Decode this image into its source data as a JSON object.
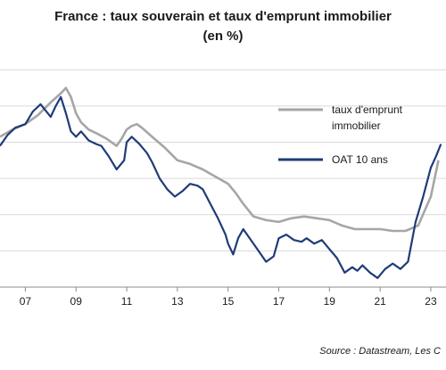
{
  "title_line1": "France : taux souverain et taux d'emprunt immobilier",
  "title_line2": "(en %)",
  "source": "Source : Datastream, Les C",
  "colors": {
    "mortgage": "#a6a6a6",
    "oat": "#1f3c78",
    "grid": "#d9d9d9"
  },
  "chart_data": {
    "type": "line",
    "title": "France : taux souverain et taux d'emprunt immobilier (en %)",
    "xlabel": "",
    "ylabel": "",
    "xlim": [
      2006.0,
      2023.6
    ],
    "ylim": [
      -0.5,
      6.0
    ],
    "x_ticks": [
      {
        "x": 2007.0,
        "label": "07"
      },
      {
        "x": 2009.0,
        "label": "09"
      },
      {
        "x": 2011.0,
        "label": "11"
      },
      {
        "x": 2013.0,
        "label": "13"
      },
      {
        "x": 2015.0,
        "label": "15"
      },
      {
        "x": 2017.0,
        "label": "17"
      },
      {
        "x": 2019.0,
        "label": "19"
      },
      {
        "x": 2021.0,
        "label": "21"
      },
      {
        "x": 2023.0,
        "label": "23"
      }
    ],
    "y_gridlines": [
      0.5,
      1.5,
      2.5,
      3.5,
      4.5,
      5.5
    ],
    "grid": true,
    "legend_position": "right",
    "series": [
      {
        "name": "taux d'emprunt immobilier",
        "color": "#a6a6a6",
        "x": [
          2006.0,
          2006.5,
          2007.0,
          2007.5,
          2008.0,
          2008.4,
          2008.6,
          2008.8,
          2009.0,
          2009.2,
          2009.5,
          2009.8,
          2010.2,
          2010.6,
          2010.8,
          2011.0,
          2011.2,
          2011.4,
          2011.6,
          2012.0,
          2012.5,
          2013.0,
          2013.5,
          2014.0,
          2014.5,
          2015.0,
          2015.3,
          2015.6,
          2016.0,
          2016.5,
          2017.0,
          2017.5,
          2018.0,
          2018.5,
          2019.0,
          2019.5,
          2020.0,
          2020.5,
          2021.0,
          2021.5,
          2022.0,
          2022.5,
          2023.0,
          2023.3
        ],
        "values": [
          3.65,
          3.85,
          4.0,
          4.25,
          4.6,
          4.85,
          5.0,
          4.75,
          4.3,
          4.05,
          3.85,
          3.75,
          3.6,
          3.4,
          3.6,
          3.85,
          3.95,
          4.0,
          3.9,
          3.65,
          3.35,
          3.0,
          2.9,
          2.75,
          2.55,
          2.35,
          2.1,
          1.8,
          1.45,
          1.35,
          1.3,
          1.4,
          1.45,
          1.4,
          1.35,
          1.2,
          1.1,
          1.1,
          1.1,
          1.05,
          1.05,
          1.2,
          2.0,
          3.0
        ]
      },
      {
        "name": "OAT 10 ans",
        "color": "#1f3c78",
        "x": [
          2006.0,
          2006.3,
          2006.6,
          2007.0,
          2007.3,
          2007.6,
          2008.0,
          2008.2,
          2008.4,
          2008.6,
          2008.8,
          2009.0,
          2009.2,
          2009.5,
          2009.8,
          2010.0,
          2010.3,
          2010.6,
          2010.9,
          2011.0,
          2011.2,
          2011.5,
          2011.8,
          2012.0,
          2012.3,
          2012.6,
          2012.9,
          2013.2,
          2013.5,
          2013.8,
          2014.0,
          2014.3,
          2014.6,
          2014.9,
          2015.0,
          2015.2,
          2015.4,
          2015.6,
          2015.9,
          2016.2,
          2016.5,
          2016.8,
          2017.0,
          2017.3,
          2017.6,
          2017.9,
          2018.1,
          2018.4,
          2018.7,
          2019.0,
          2019.3,
          2019.6,
          2019.9,
          2020.1,
          2020.3,
          2020.6,
          2020.9,
          2021.2,
          2021.5,
          2021.8,
          2022.1,
          2022.4,
          2022.7,
          2023.0,
          2023.2,
          2023.4
        ],
        "values": [
          3.4,
          3.7,
          3.9,
          4.0,
          4.35,
          4.55,
          4.2,
          4.5,
          4.75,
          4.3,
          3.8,
          3.65,
          3.8,
          3.55,
          3.45,
          3.4,
          3.1,
          2.75,
          3.0,
          3.5,
          3.65,
          3.45,
          3.2,
          2.95,
          2.5,
          2.2,
          2.0,
          2.15,
          2.35,
          2.3,
          2.2,
          1.8,
          1.4,
          0.95,
          0.7,
          0.4,
          0.85,
          1.1,
          0.8,
          0.5,
          0.2,
          0.35,
          0.85,
          0.95,
          0.8,
          0.75,
          0.85,
          0.7,
          0.8,
          0.55,
          0.3,
          -0.1,
          0.05,
          -0.05,
          0.1,
          -0.1,
          -0.25,
          0.0,
          0.15,
          0.0,
          0.2,
          1.3,
          2.0,
          2.8,
          3.1,
          3.45
        ]
      }
    ]
  }
}
